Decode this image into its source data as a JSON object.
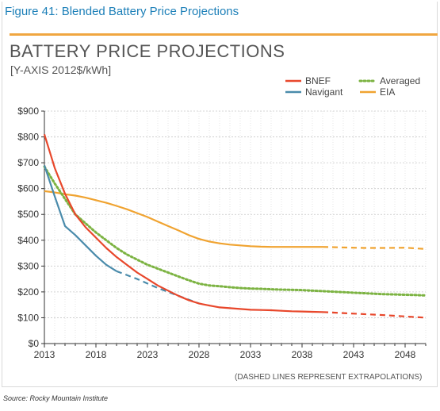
{
  "figure": {
    "caption": "Figure 41: Blended Battery Price Projections",
    "source": "Source: Rocky Mountain Institute"
  },
  "colors": {
    "BNEF": "#e8472b",
    "Navigant": "#4a8bab",
    "Averaged": "#7cb342",
    "EIA": "#f0a330",
    "caption": "#1c7fb8",
    "accent_rule": "#f0a640"
  },
  "chart_data": {
    "type": "line",
    "title": "BATTERY PRICE PROJECTIONS",
    "subtitle": "[Y-AXIS 2012$/kWh]",
    "note": "(DASHED LINES REPRESENT EXTRAPOLATIONS)",
    "xlim": [
      2013,
      2050
    ],
    "ylim": [
      0,
      900
    ],
    "x_ticks": [
      2013,
      2018,
      2023,
      2028,
      2033,
      2038,
      2043,
      2048
    ],
    "y_ticks": [
      0,
      100,
      200,
      300,
      400,
      500,
      600,
      700,
      800,
      900
    ],
    "y_tick_labels": [
      "$0",
      "$100",
      "$200",
      "$300",
      "$400",
      "$500",
      "$600",
      "$700",
      "$800",
      "$900"
    ],
    "grid": true,
    "legend_position": "top-right",
    "series": [
      {
        "name": "BNEF",
        "style": "solid",
        "points": [
          [
            2013,
            810
          ],
          [
            2014,
            680
          ],
          [
            2015,
            580
          ],
          [
            2016,
            500
          ],
          [
            2017,
            450
          ],
          [
            2018,
            410
          ],
          [
            2019,
            370
          ],
          [
            2020,
            335
          ],
          [
            2021,
            305
          ],
          [
            2022,
            275
          ],
          [
            2023,
            250
          ],
          [
            2024,
            225
          ],
          [
            2025,
            205
          ],
          [
            2026,
            185
          ],
          [
            2027,
            168
          ],
          [
            2028,
            155
          ],
          [
            2029,
            147
          ],
          [
            2030,
            140
          ],
          [
            2031,
            137
          ],
          [
            2032,
            134
          ],
          [
            2033,
            131
          ],
          [
            2034,
            130
          ],
          [
            2035,
            129
          ],
          [
            2036,
            127
          ],
          [
            2037,
            125
          ],
          [
            2038,
            124
          ],
          [
            2039,
            123
          ],
          [
            2040,
            122
          ]
        ],
        "extrapolated": [
          [
            2040,
            122
          ],
          [
            2042,
            118
          ],
          [
            2044,
            114
          ],
          [
            2046,
            110
          ],
          [
            2048,
            105
          ],
          [
            2050,
            100
          ]
        ]
      },
      {
        "name": "Navigant",
        "style": "solid",
        "points": [
          [
            2013,
            690
          ],
          [
            2014,
            570
          ],
          [
            2015,
            455
          ],
          [
            2016,
            420
          ],
          [
            2017,
            380
          ],
          [
            2018,
            340
          ],
          [
            2019,
            305
          ],
          [
            2020,
            280
          ]
        ],
        "extrapolated": [
          [
            2020,
            280
          ],
          [
            2022,
            250
          ],
          [
            2024,
            215
          ],
          [
            2026,
            185
          ],
          [
            2028,
            155
          ]
        ]
      },
      {
        "name": "Averaged",
        "style": "dotted",
        "points": [
          [
            2013,
            685
          ],
          [
            2014,
            620
          ],
          [
            2015,
            560
          ],
          [
            2016,
            500
          ],
          [
            2017,
            465
          ],
          [
            2018,
            430
          ],
          [
            2019,
            400
          ],
          [
            2020,
            370
          ],
          [
            2021,
            345
          ],
          [
            2022,
            325
          ],
          [
            2023,
            305
          ],
          [
            2024,
            290
          ],
          [
            2025,
            275
          ],
          [
            2026,
            260
          ],
          [
            2027,
            245
          ],
          [
            2028,
            232
          ],
          [
            2029,
            225
          ],
          [
            2030,
            222
          ],
          [
            2031,
            218
          ],
          [
            2032,
            215
          ],
          [
            2033,
            213
          ],
          [
            2034,
            212
          ],
          [
            2035,
            210
          ],
          [
            2036,
            209
          ],
          [
            2037,
            208
          ],
          [
            2038,
            207
          ],
          [
            2039,
            205
          ],
          [
            2040,
            203
          ],
          [
            2041,
            201
          ],
          [
            2042,
            199
          ],
          [
            2043,
            197
          ],
          [
            2044,
            195
          ],
          [
            2045,
            193
          ],
          [
            2046,
            191
          ],
          [
            2047,
            190
          ],
          [
            2048,
            189
          ],
          [
            2049,
            188
          ],
          [
            2050,
            186
          ]
        ]
      },
      {
        "name": "EIA",
        "style": "solid",
        "points": [
          [
            2013,
            590
          ],
          [
            2014,
            585
          ],
          [
            2015,
            578
          ],
          [
            2016,
            573
          ],
          [
            2017,
            565
          ],
          [
            2018,
            555
          ],
          [
            2019,
            545
          ],
          [
            2020,
            533
          ],
          [
            2021,
            520
          ],
          [
            2022,
            505
          ],
          [
            2023,
            490
          ],
          [
            2024,
            472
          ],
          [
            2025,
            455
          ],
          [
            2026,
            438
          ],
          [
            2027,
            420
          ],
          [
            2028,
            405
          ],
          [
            2029,
            395
          ],
          [
            2030,
            388
          ],
          [
            2031,
            383
          ],
          [
            2032,
            380
          ],
          [
            2033,
            377
          ],
          [
            2034,
            375
          ],
          [
            2035,
            374
          ],
          [
            2036,
            374
          ],
          [
            2037,
            374
          ],
          [
            2038,
            374
          ],
          [
            2039,
            374
          ],
          [
            2040,
            374
          ]
        ],
        "extrapolated": [
          [
            2040,
            374
          ],
          [
            2042,
            372
          ],
          [
            2044,
            370
          ],
          [
            2046,
            370
          ],
          [
            2048,
            371
          ],
          [
            2050,
            366
          ]
        ]
      }
    ]
  }
}
